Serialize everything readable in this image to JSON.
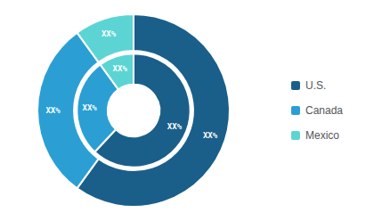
{
  "chart_data": {
    "type": "pie",
    "categories": [
      "U.S.",
      "Canada",
      "Mexico"
    ],
    "colors": [
      "#1a5f8a",
      "#2b9fd4",
      "#5dd4d4"
    ],
    "series": [
      {
        "values": [
          60,
          30,
          10
        ],
        "value_labels": [
          "XX%",
          "XX%",
          "XX%"
        ]
      },
      {
        "values": [
          62,
          28,
          10
        ],
        "value_labels": [
          "XX%",
          "XX%",
          "XX%"
        ]
      }
    ],
    "data_labels": true,
    "legend": "right"
  }
}
